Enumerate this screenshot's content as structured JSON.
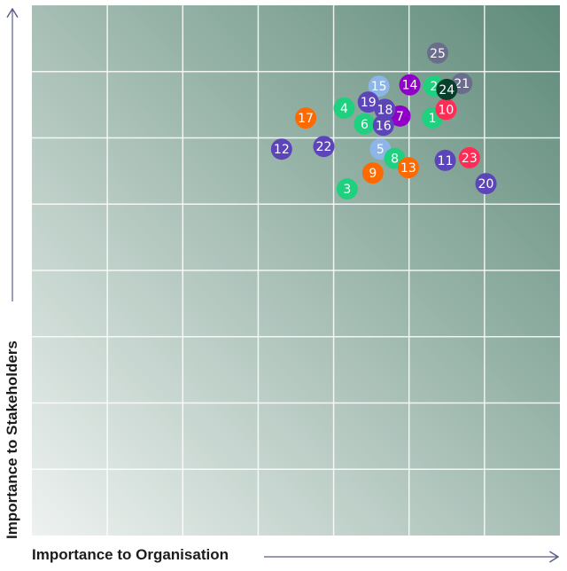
{
  "chart_data": {
    "type": "scatter",
    "title": "",
    "xlabel": "Importance to Organisation",
    "ylabel": "Importance to Stakeholders",
    "xlim": [
      0,
      7
    ],
    "ylim": [
      0,
      8
    ],
    "grid": true,
    "colors": {
      "green": "#1fd17f",
      "indigo": "#5b45b9",
      "orange": "#ff6a00",
      "red": "#ff2d55",
      "magenta": "#9000c6",
      "lightblue": "#8db5e8",
      "grey": "#6b6d8c",
      "darkgreen": "#063f2b",
      "bg_low": "#eef2f0",
      "bg_high": "#5e8a79"
    },
    "points": [
      {
        "label": "25",
        "x": 5.38,
        "y": 7.28,
        "color": "grey"
      },
      {
        "label": "17",
        "x": 3.63,
        "y": 6.3,
        "color": "orange"
      },
      {
        "label": "12",
        "x": 3.31,
        "y": 5.83,
        "color": "indigo"
      },
      {
        "label": "22",
        "x": 3.87,
        "y": 5.87,
        "color": "indigo"
      },
      {
        "label": "3",
        "x": 4.18,
        "y": 5.23,
        "color": "green"
      },
      {
        "label": "9",
        "x": 4.52,
        "y": 5.47,
        "color": "orange"
      },
      {
        "label": "5",
        "x": 4.62,
        "y": 5.83,
        "color": "lightblue"
      },
      {
        "label": "8",
        "x": 4.81,
        "y": 5.69,
        "color": "green"
      },
      {
        "label": "13",
        "x": 4.99,
        "y": 5.55,
        "color": "orange"
      },
      {
        "label": "11",
        "x": 5.48,
        "y": 5.66,
        "color": "indigo"
      },
      {
        "label": "23",
        "x": 5.8,
        "y": 5.7,
        "color": "red"
      },
      {
        "label": "20",
        "x": 6.02,
        "y": 5.31,
        "color": "indigo"
      },
      {
        "label": "4",
        "x": 4.14,
        "y": 6.45,
        "color": "green"
      },
      {
        "label": "6",
        "x": 4.41,
        "y": 6.21,
        "color": "green"
      },
      {
        "label": "15",
        "x": 4.6,
        "y": 6.78,
        "color": "lightblue"
      },
      {
        "label": "19",
        "x": 4.46,
        "y": 6.54,
        "color": "indigo"
      },
      {
        "label": "7",
        "x": 4.88,
        "y": 6.33,
        "color": "magenta"
      },
      {
        "label": "18",
        "x": 4.68,
        "y": 6.43,
        "color": "indigo"
      },
      {
        "label": "16",
        "x": 4.66,
        "y": 6.19,
        "color": "indigo"
      },
      {
        "label": "14",
        "x": 5.01,
        "y": 6.8,
        "color": "magenta"
      },
      {
        "label": "1",
        "x": 5.31,
        "y": 6.3,
        "color": "green"
      },
      {
        "label": "2",
        "x": 5.33,
        "y": 6.78,
        "color": "green"
      },
      {
        "label": "21",
        "x": 5.7,
        "y": 6.82,
        "color": "grey"
      },
      {
        "label": "10",
        "x": 5.49,
        "y": 6.43,
        "color": "red"
      },
      {
        "label": "24",
        "x": 5.5,
        "y": 6.73,
        "color": "darkgreen"
      }
    ]
  }
}
